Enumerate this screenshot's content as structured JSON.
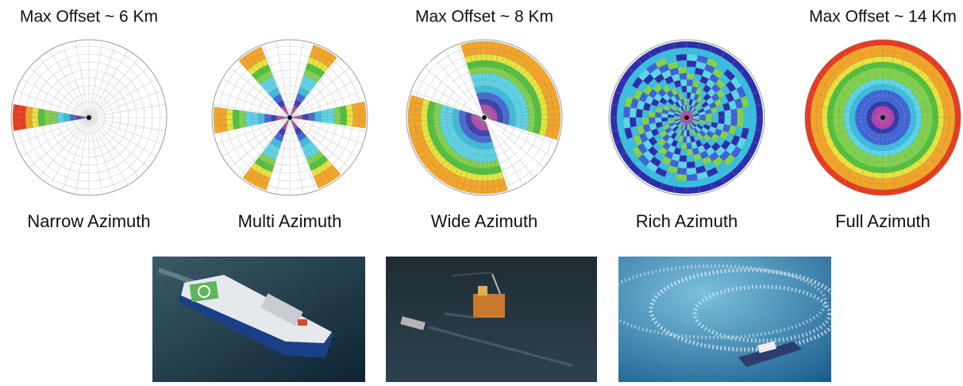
{
  "panels": [
    {
      "offset": "Max Offset ~ 6 Km",
      "label": "Narrow Azimuth"
    },
    {
      "label": "Multi Azimuth"
    },
    {
      "offset": "Max Offset ~ 8 Km",
      "label": "Wide Azimuth"
    },
    {
      "label": "Rich Azimuth"
    },
    {
      "offset": "Max Offset ~ 14 Km",
      "label": "Full Azimuth"
    }
  ]
}
